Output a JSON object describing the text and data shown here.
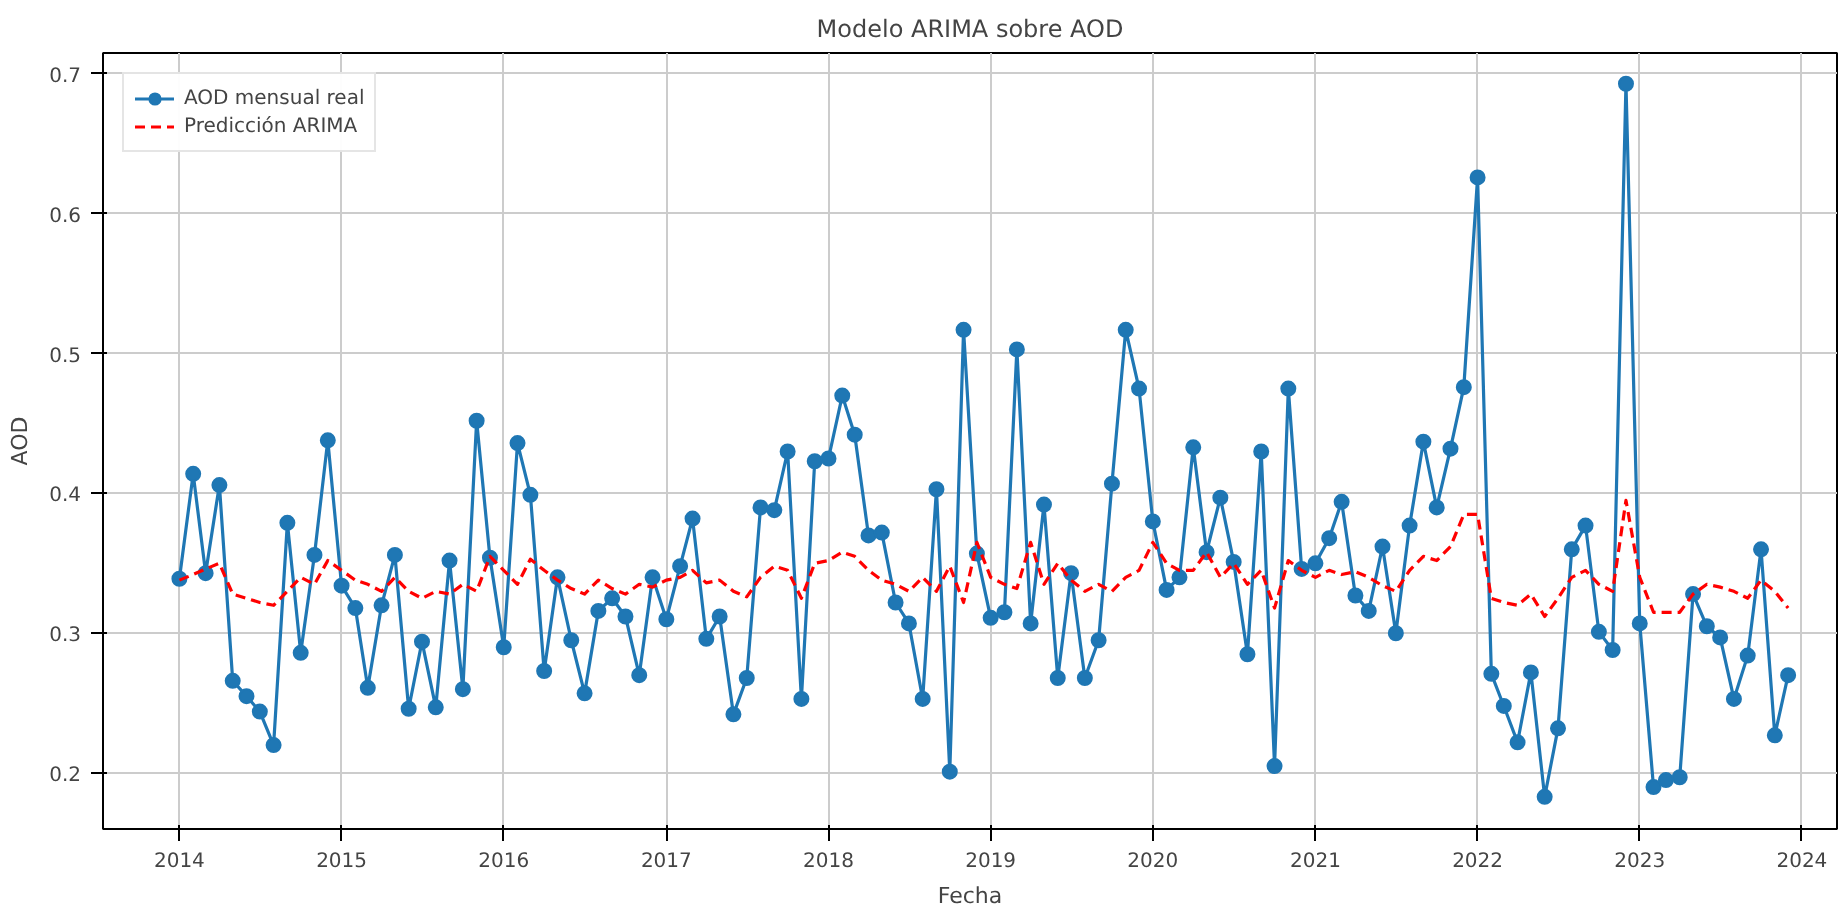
{
  "chart_data": {
    "type": "line",
    "title": "Modelo ARIMA sobre AOD",
    "xlabel": "Fecha",
    "ylabel": "AOD",
    "xlim": [
      "2013-07-13",
      "2024-03-20"
    ],
    "ylim": [
      0.16,
      0.715
    ],
    "xticks": [
      "2014",
      "2015",
      "2016",
      "2017",
      "2018",
      "2019",
      "2020",
      "2021",
      "2022",
      "2023",
      "2024"
    ],
    "yticks": [
      0.2,
      0.3,
      0.4,
      0.5,
      0.6,
      0.7
    ],
    "grid": true,
    "legend": "top left",
    "x": [
      "2014-01",
      "2014-02",
      "2014-03",
      "2014-04",
      "2014-05",
      "2014-06",
      "2014-07",
      "2014-08",
      "2014-09",
      "2014-10",
      "2014-11",
      "2014-12",
      "2015-01",
      "2015-02",
      "2015-03",
      "2015-04",
      "2015-05",
      "2015-06",
      "2015-07",
      "2015-08",
      "2015-09",
      "2015-10",
      "2015-11",
      "2015-12",
      "2016-01",
      "2016-02",
      "2016-03",
      "2016-04",
      "2016-05",
      "2016-06",
      "2016-07",
      "2016-08",
      "2016-09",
      "2016-10",
      "2016-11",
      "2016-12",
      "2017-01",
      "2017-02",
      "2017-03",
      "2017-04",
      "2017-05",
      "2017-06",
      "2017-07",
      "2017-08",
      "2017-09",
      "2017-10",
      "2017-11",
      "2017-12",
      "2018-01",
      "2018-02",
      "2018-03",
      "2018-04",
      "2018-05",
      "2018-06",
      "2018-07",
      "2018-08",
      "2018-09",
      "2018-10",
      "2018-11",
      "2018-12",
      "2019-01",
      "2019-02",
      "2019-03",
      "2019-04",
      "2019-05",
      "2019-06",
      "2019-07",
      "2019-08",
      "2019-09",
      "2019-10",
      "2019-11",
      "2019-12",
      "2020-01",
      "2020-02",
      "2020-03",
      "2020-04",
      "2020-05",
      "2020-06",
      "2020-07",
      "2020-08",
      "2020-09",
      "2020-10",
      "2020-11",
      "2020-12",
      "2021-01",
      "2021-02",
      "2021-03",
      "2021-04",
      "2021-05",
      "2021-06",
      "2021-07",
      "2021-08",
      "2021-09",
      "2021-10",
      "2021-11",
      "2021-12",
      "2022-01",
      "2022-02",
      "2022-03",
      "2022-04",
      "2022-05",
      "2022-06",
      "2022-07",
      "2022-08",
      "2022-09",
      "2022-10",
      "2022-11",
      "2022-12",
      "2023-01",
      "2023-02",
      "2023-03",
      "2023-04",
      "2023-05",
      "2023-06",
      "2023-07",
      "2023-08",
      "2023-09",
      "2023-10",
      "2023-11",
      "2023-12"
    ],
    "series": [
      {
        "name": "AOD mensual real",
        "color": "#1f77b4",
        "marker": "circle",
        "line_style": "solid",
        "values": [
          0.339,
          0.414,
          0.343,
          0.406,
          0.266,
          0.255,
          0.244,
          0.22,
          0.379,
          0.286,
          0.356,
          0.438,
          0.334,
          0.318,
          0.261,
          0.32,
          0.356,
          0.246,
          0.294,
          0.247,
          0.352,
          0.26,
          0.452,
          0.354,
          0.29,
          0.436,
          0.399,
          0.273,
          0.34,
          0.295,
          0.257,
          0.316,
          0.325,
          0.312,
          0.27,
          0.34,
          0.31,
          0.348,
          0.382,
          0.296,
          0.312,
          0.242,
          0.268,
          0.39,
          0.388,
          0.43,
          0.253,
          0.423,
          0.425,
          0.47,
          0.442,
          0.37,
          0.372,
          0.322,
          0.307,
          0.253,
          0.403,
          0.201,
          0.517,
          0.357,
          0.311,
          0.315,
          0.503,
          0.307,
          0.392,
          0.268,
          0.343,
          0.268,
          0.295,
          0.407,
          0.517,
          0.475,
          0.38,
          0.331,
          0.34,
          0.433,
          0.358,
          0.397,
          0.351,
          0.285,
          0.43,
          0.205,
          0.475,
          0.346,
          0.35,
          0.368,
          0.394,
          0.327,
          0.316,
          0.362,
          0.3,
          0.377,
          0.437,
          0.39,
          0.432,
          0.476,
          0.626,
          0.271,
          0.248,
          0.222,
          0.272,
          0.183,
          0.232,
          0.36,
          0.377,
          0.301,
          0.288,
          0.693,
          0.307,
          0.19,
          0.195,
          0.197,
          0.328,
          0.305,
          0.297,
          0.253,
          0.284,
          0.36,
          0.227,
          0.27
        ]
      },
      {
        "name": "Predicción ARIMA",
        "color": "#ff0000",
        "marker": "none",
        "line_style": "dashed",
        "values": [
          0.338,
          0.342,
          0.346,
          0.35,
          0.328,
          0.325,
          0.322,
          0.32,
          0.33,
          0.34,
          0.335,
          0.352,
          0.345,
          0.338,
          0.335,
          0.33,
          0.34,
          0.33,
          0.325,
          0.33,
          0.328,
          0.335,
          0.33,
          0.355,
          0.345,
          0.335,
          0.353,
          0.345,
          0.338,
          0.332,
          0.328,
          0.338,
          0.332,
          0.328,
          0.335,
          0.333,
          0.338,
          0.34,
          0.345,
          0.336,
          0.338,
          0.33,
          0.326,
          0.34,
          0.348,
          0.345,
          0.325,
          0.35,
          0.352,
          0.358,
          0.355,
          0.345,
          0.338,
          0.335,
          0.33,
          0.34,
          0.33,
          0.348,
          0.322,
          0.365,
          0.34,
          0.335,
          0.332,
          0.365,
          0.335,
          0.35,
          0.338,
          0.33,
          0.335,
          0.33,
          0.34,
          0.345,
          0.365,
          0.35,
          0.345,
          0.345,
          0.358,
          0.34,
          0.35,
          0.335,
          0.345,
          0.318,
          0.352,
          0.345,
          0.34,
          0.345,
          0.342,
          0.344,
          0.34,
          0.334,
          0.33,
          0.345,
          0.355,
          0.352,
          0.362,
          0.385,
          0.385,
          0.325,
          0.322,
          0.32,
          0.328,
          0.312,
          0.325,
          0.34,
          0.345,
          0.335,
          0.33,
          0.395,
          0.34,
          0.315,
          0.315,
          0.315,
          0.328,
          0.335,
          0.333,
          0.33,
          0.325,
          0.338,
          0.33,
          0.318
        ]
      }
    ]
  }
}
